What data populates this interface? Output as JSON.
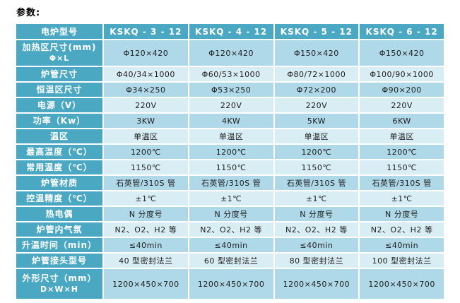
{
  "page": {
    "title": "参数:"
  },
  "colors": {
    "teal": "#4ba8c2",
    "row_medium": "#afd9e8",
    "row_light": "#d9edf5",
    "header_text": "#ffffff",
    "cell_text": "#1d1d1d",
    "page_bg": "#ffffff"
  },
  "table": {
    "corner_label": "电炉型号",
    "models": [
      "KSKQ - 3 - 12",
      "KSKQ - 4 - 12",
      "KSKQ - 5 - 12",
      "KSKQ - 6 - 12"
    ],
    "rows": [
      {
        "label": "加热区尺寸(mm)",
        "label2": "Φ×L",
        "values": [
          "Φ120×420",
          "Φ120×420",
          "Φ150×420",
          "Φ150×420"
        ]
      },
      {
        "label": "炉管尺寸",
        "values": [
          "Φ40/34×1000",
          "Φ60/53×1000",
          "Φ80/72×1000",
          "Φ100/90×1000"
        ]
      },
      {
        "label": "恒温区尺寸",
        "values": [
          "Φ34×250",
          "Φ53×250",
          "Φ72×200",
          "Φ90×200"
        ]
      },
      {
        "label": "电源（V）",
        "values": [
          "220V",
          "220V",
          "220V",
          "220V"
        ]
      },
      {
        "label": "功率（Kw）",
        "values": [
          "3KW",
          "4KW",
          "5KW",
          "6KW"
        ]
      },
      {
        "label": "温区",
        "values": [
          "单温区",
          "单温区",
          "单温区",
          "单温区"
        ]
      },
      {
        "label": "最高温度（℃）",
        "values": [
          "1200℃",
          "1200℃",
          "1200℃",
          "1200℃"
        ]
      },
      {
        "label": "常用温度（℃）",
        "values": [
          "1150℃",
          "1150℃",
          "1150℃",
          "1150℃"
        ]
      },
      {
        "label": "炉管材质",
        "values": [
          "石英管/310S 管",
          "石英管/310S 管",
          "石英管/310S 管",
          "石英管/310S 管"
        ]
      },
      {
        "label": "控温精度（℃）",
        "values": [
          "±1℃",
          "±1℃",
          "±1℃",
          "±1℃"
        ]
      },
      {
        "label": "热电偶",
        "values": [
          "N 分度号",
          "N 分度号",
          "N 分度号",
          "N 分度号"
        ]
      },
      {
        "label": "炉管内气氛",
        "values": [
          "N2、O2、H2 等",
          "N2、O2、H2 等",
          "N2、O2、H2 等",
          "N2、O2、H2 等"
        ]
      },
      {
        "label": "升温时间（min）",
        "values": [
          "≤40min",
          "≤40min",
          "≤40min",
          "≤40min"
        ]
      },
      {
        "label": "炉管接头型号",
        "values": [
          "40 型密封法兰",
          "60 型密封法兰",
          "80 型密封法兰",
          "100 型密封法兰"
        ]
      },
      {
        "label": "外形尺寸（mm）",
        "label2": "D×W×H",
        "values": [
          "1200×450×700",
          "1200×450×700",
          "1200×450×700",
          "1200×450×700"
        ]
      }
    ]
  }
}
